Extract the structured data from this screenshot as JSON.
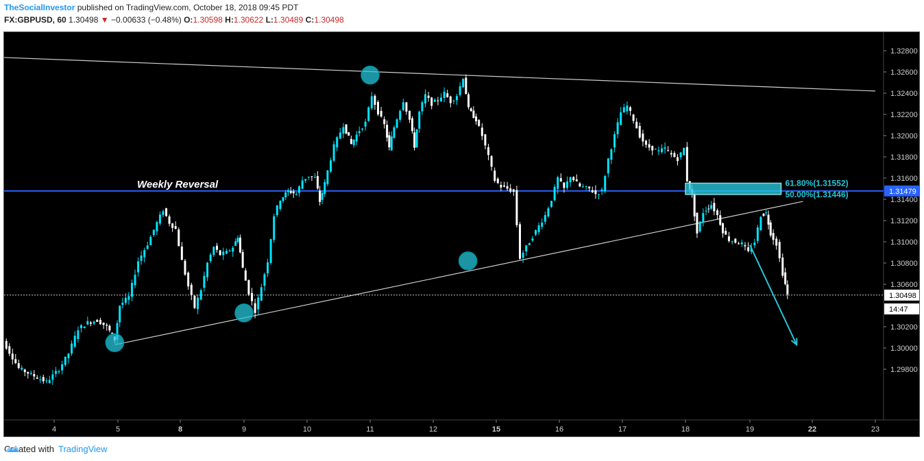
{
  "header": {
    "author": "TheSocialInvestor",
    "published": "published on TradingView.com, October 18, 2018 09:45 PDT",
    "symbol": "FX:GBPUSD, 60",
    "last": "1.30498",
    "change_icon": "triangle-down-icon",
    "change": "−0.00633 (−0.48%)",
    "o_label": "O:",
    "o": "1.30598",
    "h_label": "H:",
    "h": "1.30622",
    "l_label": "L:",
    "l": "1.30489",
    "c_label": "C:",
    "c": "1.30498"
  },
  "footer": {
    "created_with": "Created with",
    "brand": "TradingView",
    "logo_icon": "tradingview-logo-icon"
  },
  "colors": {
    "background": "#000000",
    "candle": "#ffffff",
    "candle_up": "#00e5ff",
    "level_line": "#2962ff",
    "highlight": "#26c6da",
    "price_red": "#c62828"
  },
  "chart_data": {
    "type": "candlestick",
    "symbol": "FX:GBPUSD",
    "timeframe": "60",
    "ylim": [
      1.2975,
      1.329
    ],
    "y_ticks": [
      "1.32800",
      "1.32600",
      "1.32400",
      "1.32200",
      "1.32000",
      "1.31800",
      "1.31600",
      "1.31400",
      "1.31200",
      "1.31000",
      "1.30800",
      "1.30600",
      "1.30200",
      "1.30000",
      "1.29800"
    ],
    "x_ticks": [
      {
        "label": "4",
        "day": 4,
        "bold": false
      },
      {
        "label": "5",
        "day": 5,
        "bold": false
      },
      {
        "label": "8",
        "day": 8,
        "bold": true
      },
      {
        "label": "9",
        "day": 9,
        "bold": false
      },
      {
        "label": "10",
        "day": 10,
        "bold": false
      },
      {
        "label": "11",
        "day": 11,
        "bold": false
      },
      {
        "label": "12",
        "day": 12,
        "bold": false
      },
      {
        "label": "15",
        "day": 15,
        "bold": true
      },
      {
        "label": "16",
        "day": 16,
        "bold": false
      },
      {
        "label": "17",
        "day": 17,
        "bold": false
      },
      {
        "label": "18",
        "day": 18,
        "bold": false
      },
      {
        "label": "19",
        "day": 19,
        "bold": false
      },
      {
        "label": "22",
        "day": 22,
        "bold": true
      },
      {
        "label": "23",
        "day": 23,
        "bold": false
      }
    ],
    "price_path": [
      [
        3.05,
        1.3012
      ],
      [
        3.2,
        1.3006
      ],
      [
        3.45,
        1.2981
      ],
      [
        3.65,
        1.2975
      ],
      [
        3.9,
        1.2968
      ],
      [
        4.1,
        1.298
      ],
      [
        4.25,
        1.2995
      ],
      [
        4.4,
        1.3018
      ],
      [
        4.55,
        1.3024
      ],
      [
        4.7,
        1.3026
      ],
      [
        4.85,
        1.302
      ],
      [
        4.97,
        1.3008
      ],
      [
        5.05,
        1.304
      ],
      [
        5.2,
        1.3048
      ],
      [
        5.35,
        1.3082
      ],
      [
        5.5,
        1.3098
      ],
      [
        5.65,
        1.3118
      ],
      [
        5.75,
        1.313
      ],
      [
        5.85,
        1.3118
      ],
      [
        5.95,
        1.3112
      ],
      [
        6.05,
        1.3082
      ],
      [
        6.15,
        1.3058
      ],
      [
        6.25,
        1.3038
      ],
      [
        6.35,
        1.3055
      ],
      [
        6.45,
        1.308
      ],
      [
        6.55,
        1.3095
      ],
      [
        6.65,
        1.3088
      ],
      [
        6.75,
        1.309
      ],
      [
        6.85,
        1.3095
      ],
      [
        6.92,
        1.3105
      ],
      [
        7.0,
        1.3075
      ],
      [
        7.1,
        1.3052
      ],
      [
        7.2,
        1.3035
      ],
      [
        7.3,
        1.3058
      ],
      [
        7.4,
        1.3082
      ],
      [
        7.5,
        1.3125
      ],
      [
        7.6,
        1.314
      ],
      [
        7.72,
        1.3148
      ],
      [
        7.85,
        1.3145
      ],
      [
        7.95,
        1.3158
      ],
      [
        8.05,
        1.3162
      ],
      [
        8.15,
        1.316
      ],
      [
        8.22,
        1.3138
      ],
      [
        8.3,
        1.3155
      ],
      [
        8.45,
        1.319
      ],
      [
        8.6,
        1.321
      ],
      [
        8.72,
        1.3192
      ],
      [
        8.85,
        1.3205
      ],
      [
        8.95,
        1.3212
      ],
      [
        9.05,
        1.3238
      ],
      [
        9.15,
        1.3222
      ],
      [
        9.25,
        1.321
      ],
      [
        9.32,
        1.3188
      ],
      [
        9.4,
        1.3208
      ],
      [
        9.55,
        1.3233
      ],
      [
        9.65,
        1.3215
      ],
      [
        9.72,
        1.319
      ],
      [
        9.8,
        1.3222
      ],
      [
        9.9,
        1.3238
      ],
      [
        10.0,
        1.323
      ],
      [
        10.1,
        1.3234
      ],
      [
        10.2,
        1.324
      ],
      [
        10.3,
        1.3232
      ],
      [
        10.4,
        1.3238
      ],
      [
        10.5,
        1.3255
      ],
      [
        10.58,
        1.3225
      ],
      [
        10.7,
        1.3215
      ],
      [
        10.8,
        1.32
      ],
      [
        10.9,
        1.318
      ],
      [
        11.0,
        1.3158
      ],
      [
        11.1,
        1.3152
      ],
      [
        11.2,
        1.315
      ],
      [
        11.3,
        1.3147
      ],
      [
        11.4,
        1.3085
      ],
      [
        11.5,
        1.3095
      ],
      [
        11.6,
        1.3105
      ],
      [
        11.7,
        1.3115
      ],
      [
        11.8,
        1.3125
      ],
      [
        11.9,
        1.314
      ],
      [
        12.0,
        1.316
      ],
      [
        12.1,
        1.315
      ],
      [
        12.2,
        1.3162
      ],
      [
        12.35,
        1.3152
      ],
      [
        12.5,
        1.315
      ],
      [
        12.6,
        1.3145
      ],
      [
        12.7,
        1.3148
      ],
      [
        12.8,
        1.3178
      ],
      [
        12.9,
        1.32
      ],
      [
        13.0,
        1.3222
      ],
      [
        13.1,
        1.3228
      ],
      [
        13.2,
        1.3215
      ],
      [
        13.3,
        1.32
      ],
      [
        13.4,
        1.319
      ],
      [
        13.5,
        1.3188
      ],
      [
        13.6,
        1.3185
      ],
      [
        13.7,
        1.3188
      ],
      [
        13.8,
        1.3182
      ],
      [
        13.9,
        1.3178
      ],
      [
        14.0,
        1.3188
      ],
      [
        14.05,
        1.3158
      ],
      [
        14.12,
        1.3143
      ],
      [
        14.2,
        1.3108
      ],
      [
        14.3,
        1.3128
      ],
      [
        14.42,
        1.3135
      ],
      [
        14.52,
        1.3125
      ],
      [
        14.6,
        1.311
      ],
      [
        14.7,
        1.3102
      ],
      [
        14.8,
        1.31
      ],
      [
        14.9,
        1.3098
      ],
      [
        15.0,
        1.309
      ],
      [
        15.1,
        1.31
      ],
      [
        15.2,
        1.3125
      ],
      [
        15.28,
        1.3127
      ],
      [
        15.35,
        1.3108
      ],
      [
        15.45,
        1.3098
      ],
      [
        15.55,
        1.307
      ],
      [
        15.62,
        1.305
      ]
    ],
    "trendlines": [
      {
        "from": [
          3.0,
          1.3274
        ],
        "to": [
          17.0,
          1.3242
        ]
      },
      {
        "from": [
          4.95,
          1.3003
        ],
        "to": [
          15.85,
          1.3138
        ]
      }
    ],
    "horizontal_level": {
      "value": 1.31479,
      "label": "Weekly Reversal"
    },
    "axis_badges": [
      {
        "value": 1.31479,
        "label": "1.31479"
      },
      {
        "value": 1.30498,
        "label": "1.30498"
      },
      {
        "value": 1.304,
        "label": "14:47"
      }
    ],
    "pivot_circles": [
      {
        "x": 4.95,
        "y": 1.3005
      },
      {
        "x": 7.0,
        "y": 1.3033
      },
      {
        "x": 9.0,
        "y": 1.3257
      },
      {
        "x": 10.55,
        "y": 1.3082
      }
    ],
    "fib_zone": {
      "x_from": 14.0,
      "x_to": 15.5,
      "low": 1.31446,
      "high": 1.31552,
      "labels": [
        {
          "text": "61.80%(1.31552)",
          "value": 1.31552
        },
        {
          "text": "50.00%(1.31446)",
          "value": 1.31446
        }
      ]
    },
    "forecast_arrow": {
      "from": [
        15.0,
        1.3097
      ],
      "to": [
        15.75,
        1.3003
      ]
    }
  }
}
